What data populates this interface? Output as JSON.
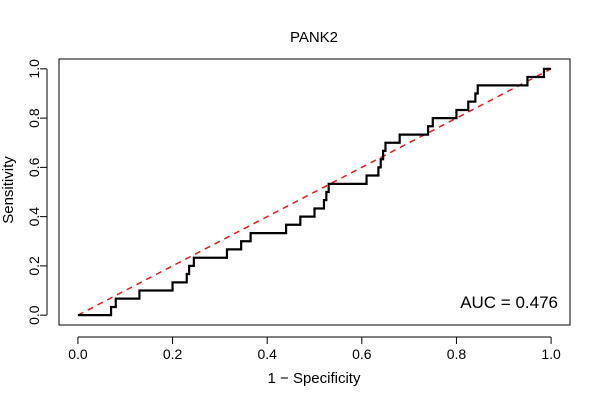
{
  "chart_data": {
    "type": "line",
    "title": "PANK2",
    "xlabel": "1 − Specificity",
    "ylabel": "Sensitivity",
    "xlim": [
      -0.04,
      1.04
    ],
    "ylim": [
      -0.04,
      1.04
    ],
    "xticks": [
      0.0,
      0.2,
      0.4,
      0.6,
      0.8,
      1.0
    ],
    "yticks": [
      0.0,
      0.2,
      0.4,
      0.6,
      0.8,
      1.0
    ],
    "xtick_labels": [
      "0.0",
      "0.2",
      "0.4",
      "0.6",
      "0.8",
      "1.0"
    ],
    "ytick_labels": [
      "0.0",
      "0.2",
      "0.4",
      "0.6",
      "0.8",
      "1.0"
    ],
    "grid": false,
    "annotation": "AUC = 0.476",
    "series": [
      {
        "style": "solid",
        "color": "#000000",
        "x": [
          0,
          0.07,
          0.07,
          0.08,
          0.08,
          0.13,
          0.13,
          0.2,
          0.2,
          0.23,
          0.23,
          0.235,
          0.235,
          0.245,
          0.245,
          0.315,
          0.315,
          0.345,
          0.345,
          0.365,
          0.365,
          0.44,
          0.44,
          0.47,
          0.47,
          0.5,
          0.5,
          0.52,
          0.52,
          0.525,
          0.525,
          0.53,
          0.53,
          0.61,
          0.61,
          0.635,
          0.635,
          0.64,
          0.64,
          0.645,
          0.645,
          0.65,
          0.65,
          0.68,
          0.68,
          0.74,
          0.74,
          0.75,
          0.75,
          0.8,
          0.8,
          0.825,
          0.825,
          0.84,
          0.84,
          0.845,
          0.845,
          0.85,
          0.85,
          0.95,
          0.95,
          0.955,
          0.955,
          0.985,
          0.985,
          1.0
        ],
        "y": [
          0,
          0,
          0.033,
          0.033,
          0.067,
          0.067,
          0.1,
          0.1,
          0.133,
          0.133,
          0.167,
          0.167,
          0.2,
          0.2,
          0.233,
          0.233,
          0.267,
          0.267,
          0.3,
          0.3,
          0.333,
          0.333,
          0.367,
          0.367,
          0.4,
          0.4,
          0.433,
          0.433,
          0.467,
          0.467,
          0.5,
          0.5,
          0.533,
          0.533,
          0.567,
          0.567,
          0.6,
          0.6,
          0.633,
          0.633,
          0.667,
          0.667,
          0.7,
          0.7,
          0.733,
          0.733,
          0.767,
          0.767,
          0.8,
          0.8,
          0.833,
          0.833,
          0.867,
          0.867,
          0.9,
          0.9,
          0.933,
          0.933,
          0.933,
          0.933,
          0.967,
          0.967,
          0.967,
          0.967,
          1.0,
          1.0
        ]
      },
      {
        "style": "dashed",
        "color": "#e31a1c",
        "x": [
          0,
          1.0
        ],
        "y": [
          0,
          1.0
        ]
      }
    ]
  }
}
